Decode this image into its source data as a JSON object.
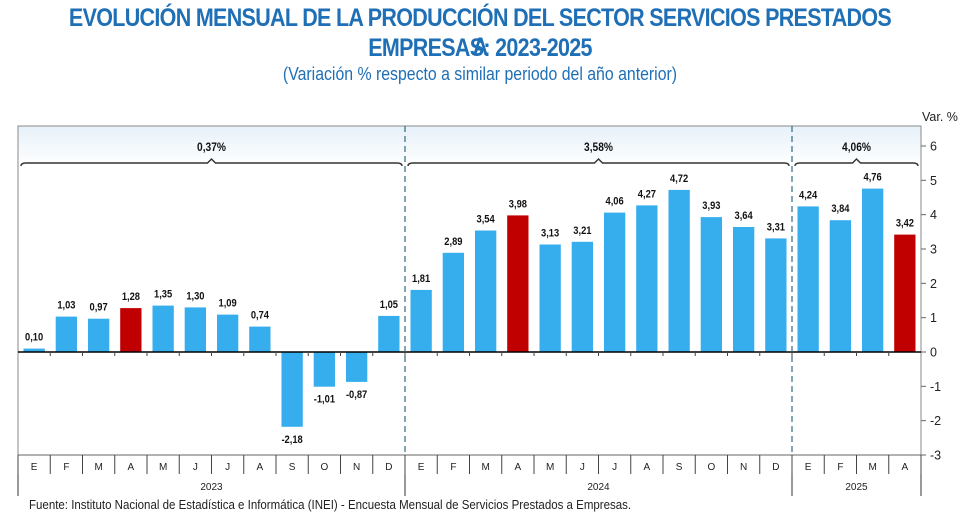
{
  "header": {
    "title_line1": "EVOLUCIÓN MENSUAL DE LA PRODUCCIÓN DEL SECTOR SERVICIOS PRESTADOS A",
    "title_line2": "EMPRESAS: 2023-2025",
    "subtitle": "(Variación % respecto a similar periodo del año anterior)"
  },
  "footer": {
    "source": "Fuente: Instituto Nacional de Estadística e Informática (INEI) - Encuesta Mensual de Servicios Prestados a Empresas."
  },
  "colors": {
    "bar_default": "#36aeee",
    "bar_highlight": "#c00000",
    "title": "#1f6fb6"
  },
  "chart_data": {
    "type": "bar",
    "title": "EVOLUCIÓN MENSUAL DE LA PRODUCCIÓN DEL SECTOR SERVICIOS PRESTADOS A EMPRESAS: 2023-2025",
    "subtitle": "(Variación % respecto a similar periodo del año anterior)",
    "ylabel": "Var. %",
    "xlabel": "",
    "ylim": [
      -3,
      6
    ],
    "yticks": [
      -3,
      -2,
      -1,
      0,
      1,
      2,
      3,
      4,
      5,
      6
    ],
    "y_axis_side": "right",
    "grid": false,
    "categories": [
      "E",
      "F",
      "M",
      "A",
      "M",
      "J",
      "J",
      "A",
      "S",
      "O",
      "N",
      "D",
      "E",
      "F",
      "M",
      "A",
      "M",
      "J",
      "J",
      "A",
      "S",
      "O",
      "N",
      "D",
      "E",
      "F",
      "M",
      "A"
    ],
    "values": [
      0.1,
      1.03,
      0.97,
      1.28,
      1.35,
      1.3,
      1.09,
      0.74,
      -2.18,
      -1.01,
      -0.87,
      1.05,
      1.81,
      2.89,
      3.54,
      3.98,
      3.13,
      3.21,
      4.06,
      4.27,
      4.72,
      3.93,
      3.64,
      3.31,
      4.24,
      3.84,
      4.76,
      3.42
    ],
    "value_labels": [
      "0,10",
      "1,03",
      "0,97",
      "1,28",
      "1,35",
      "1,30",
      "1,09",
      "0,74",
      "-2,18",
      "-1,01",
      "-0,87",
      "1,05",
      "1,81",
      "2,89",
      "3,54",
      "3,98",
      "3,13",
      "3,21",
      "4,06",
      "4,27",
      "4,72",
      "3,93",
      "3,64",
      "3,31",
      "4,24",
      "3,84",
      "4,76",
      "3,42"
    ],
    "highlighted_indices": [
      3,
      15,
      27
    ],
    "groups": [
      {
        "year": "2023",
        "start": 0,
        "count": 12,
        "summary": "0,37%"
      },
      {
        "year": "2024",
        "start": 12,
        "count": 12,
        "summary": "3,58%"
      },
      {
        "year": "2025",
        "start": 24,
        "count": 4,
        "summary": "4,06%"
      }
    ]
  }
}
